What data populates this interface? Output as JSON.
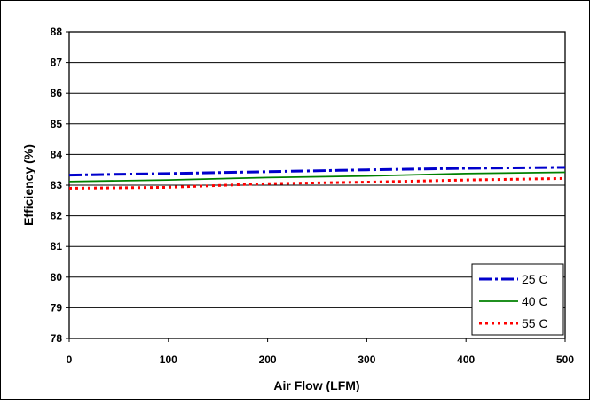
{
  "chart_data": {
    "type": "line",
    "title": "",
    "xlabel": "Air Flow (LFM)",
    "ylabel": "Efficiency (%)",
    "xlim": [
      0,
      500
    ],
    "ylim": [
      78,
      88
    ],
    "xticks": [
      "0",
      "100",
      "200",
      "300",
      "400",
      "500"
    ],
    "yticks": [
      "78",
      "79",
      "80",
      "81",
      "82",
      "83",
      "84",
      "85",
      "86",
      "87",
      "88"
    ],
    "grid": "horizontal",
    "legend": "bottom-right",
    "x": [
      0,
      100,
      200,
      300,
      400,
      500
    ],
    "series": [
      {
        "name": "25 C",
        "values": [
          83.33,
          83.38,
          83.44,
          83.5,
          83.55,
          83.58
        ],
        "color": "#0000cc",
        "dash": "dash-dot"
      },
      {
        "name": "40 C",
        "values": [
          83.12,
          83.17,
          83.25,
          83.3,
          83.38,
          83.42
        ],
        "color": "#008000",
        "dash": "solid"
      },
      {
        "name": "55 C",
        "values": [
          82.9,
          82.93,
          83.05,
          83.1,
          83.17,
          83.22
        ],
        "color": "#ff0000",
        "dash": "dotted"
      }
    ]
  }
}
